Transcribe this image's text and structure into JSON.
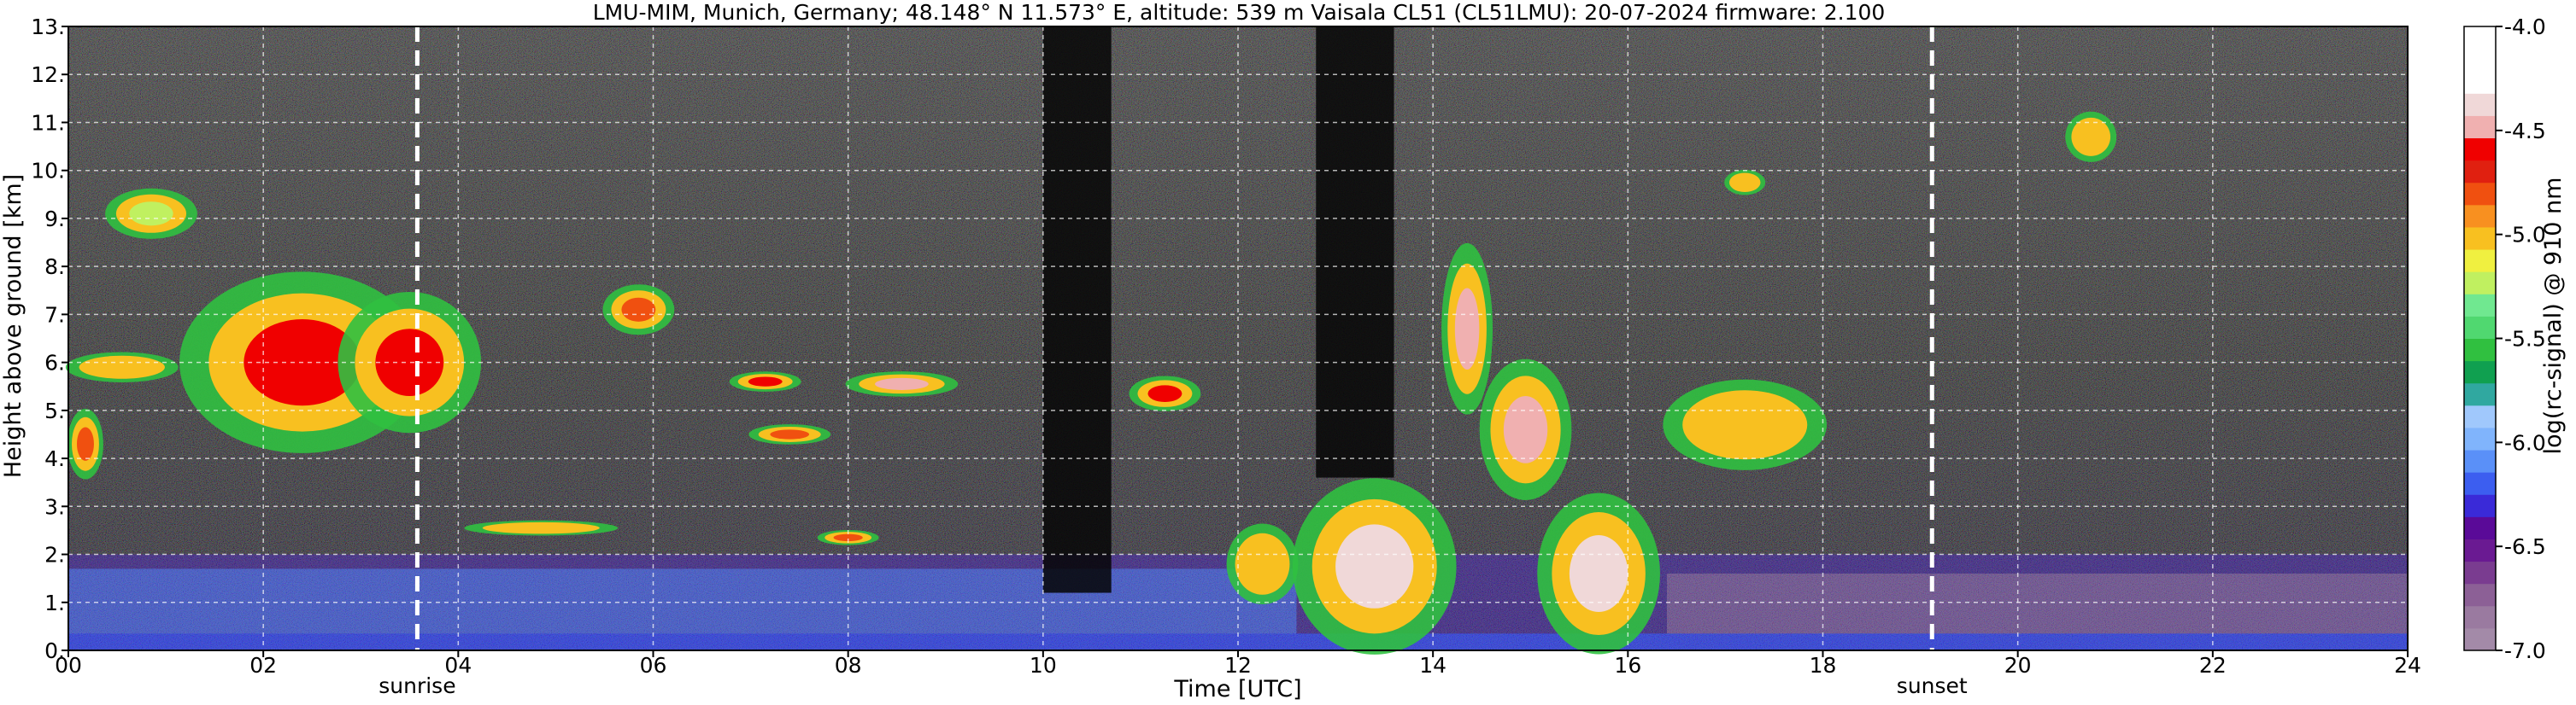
{
  "chart_data": {
    "type": "heatmap",
    "title": "LMU-MIM, Munich, Germany; 48.148° N 11.573° E, altitude: 539 m    Vaisala CL51 (CL51LMU): 20-07-2024    firmware: 2.100",
    "xlabel": "Time [UTC]",
    "ylabel": "Height above ground [km]",
    "xlim": [
      0,
      24
    ],
    "ylim": [
      0,
      13
    ],
    "x_ticks": [
      "00",
      "02",
      "04",
      "06",
      "08",
      "10",
      "12",
      "14",
      "16",
      "18",
      "20",
      "22",
      "24"
    ],
    "y_ticks": [
      "0.",
      "1.",
      "2.",
      "3.",
      "4.",
      "5.",
      "6.",
      "7.",
      "8.",
      "9.",
      "10.",
      "11.",
      "12.",
      "13."
    ],
    "grid": true,
    "annotations": [
      {
        "label": "sunrise",
        "x": 3.58
      },
      {
        "label": "sunset",
        "x": 19.12
      }
    ],
    "colorbar": {
      "label": "log(rc-signal) @ 910 nm",
      "ticks": [
        "-4.0",
        "-4.5",
        "-5.0",
        "-5.5",
        "-6.0",
        "-6.5",
        "-7.0"
      ],
      "range": [
        -7.0,
        -4.0
      ],
      "colors": [
        "#a38aa8",
        "#9a7aa0",
        "#8c6096",
        "#7a3c90",
        "#6a1a92",
        "#5a0a98",
        "#3a2ad8",
        "#3c5ef0",
        "#5a90f8",
        "#80b4fc",
        "#a0c8fc",
        "#30a8a0",
        "#10a050",
        "#30c040",
        "#50d870",
        "#70e890",
        "#c0f060",
        "#f0f040",
        "#f8c020",
        "#f89020",
        "#f05010",
        "#e02010",
        "#f00000",
        "#f0b0b0",
        "#f0d8d8",
        "#ffffff",
        "#ffffff",
        "#ffffff"
      ]
    },
    "features": [
      {
        "kind": "boundary-layer",
        "t0": 0.0,
        "t1": 24.0,
        "h0": 0.0,
        "h1": 2.0,
        "v": -6.0
      },
      {
        "kind": "cloud",
        "t0": 0.0,
        "t1": 0.35,
        "h0": 3.6,
        "h1": 5.0,
        "v": -4.8
      },
      {
        "kind": "cloud",
        "t0": 0.0,
        "t1": 1.1,
        "h0": 5.6,
        "h1": 6.2,
        "v": -5.0
      },
      {
        "kind": "cloud",
        "t0": 0.4,
        "t1": 1.3,
        "h0": 8.6,
        "h1": 9.6,
        "v": -5.2
      },
      {
        "kind": "cloud",
        "t0": 1.2,
        "t1": 3.6,
        "h0": 4.2,
        "h1": 7.8,
        "v": -4.6
      },
      {
        "kind": "cloud",
        "t0": 2.8,
        "t1": 4.2,
        "h0": 4.6,
        "h1": 7.4,
        "v": -4.6
      },
      {
        "kind": "cloud",
        "t0": 4.1,
        "t1": 5.6,
        "h0": 2.4,
        "h1": 2.7,
        "v": -5.0
      },
      {
        "kind": "cloud",
        "t0": 5.5,
        "t1": 6.2,
        "h0": 6.6,
        "h1": 7.6,
        "v": -4.8
      },
      {
        "kind": "cloud",
        "t0": 6.8,
        "t1": 7.5,
        "h0": 5.4,
        "h1": 5.8,
        "v": -4.6
      },
      {
        "kind": "cloud",
        "t0": 8.0,
        "t1": 9.1,
        "h0": 5.3,
        "h1": 5.8,
        "v": -4.5
      },
      {
        "kind": "cloud",
        "t0": 7.0,
        "t1": 7.8,
        "h0": 4.3,
        "h1": 4.7,
        "v": -4.8
      },
      {
        "kind": "cloud",
        "t0": 7.7,
        "t1": 8.3,
        "h0": 2.2,
        "h1": 2.5,
        "v": -4.8
      },
      {
        "kind": "cloud",
        "t0": 10.9,
        "t1": 11.6,
        "h0": 5.0,
        "h1": 5.7,
        "v": -4.6
      },
      {
        "kind": "cloud",
        "t0": 11.9,
        "t1": 12.6,
        "h0": 1.0,
        "h1": 2.6,
        "v": -5.0
      },
      {
        "kind": "cloud",
        "t0": 12.6,
        "t1": 14.2,
        "h0": 0.0,
        "h1": 3.5,
        "v": -4.4
      },
      {
        "kind": "cloud",
        "t0": 14.1,
        "t1": 14.6,
        "h0": 5.0,
        "h1": 8.4,
        "v": -4.5
      },
      {
        "kind": "cloud",
        "t0": 14.5,
        "t1": 15.4,
        "h0": 3.2,
        "h1": 6.0,
        "v": -4.5
      },
      {
        "kind": "cloud",
        "t0": 15.1,
        "t1": 16.3,
        "h0": 0.0,
        "h1": 3.2,
        "v": -4.4
      },
      {
        "kind": "cloud",
        "t0": 16.4,
        "t1": 18.0,
        "h0": 3.8,
        "h1": 5.6,
        "v": -5.0
      },
      {
        "kind": "cloud",
        "t0": 17.0,
        "t1": 17.4,
        "h0": 9.5,
        "h1": 10.0,
        "v": -5.0
      },
      {
        "kind": "cloud",
        "t0": 20.5,
        "t1": 21.0,
        "h0": 10.2,
        "h1": 11.2,
        "v": -5.0
      },
      {
        "kind": "signal-loss",
        "t0": 10.0,
        "t1": 10.7,
        "h0": 1.2,
        "h1": 13.0
      },
      {
        "kind": "signal-loss",
        "t0": 12.8,
        "t1": 13.6,
        "h0": 3.6,
        "h1": 13.0
      }
    ]
  }
}
